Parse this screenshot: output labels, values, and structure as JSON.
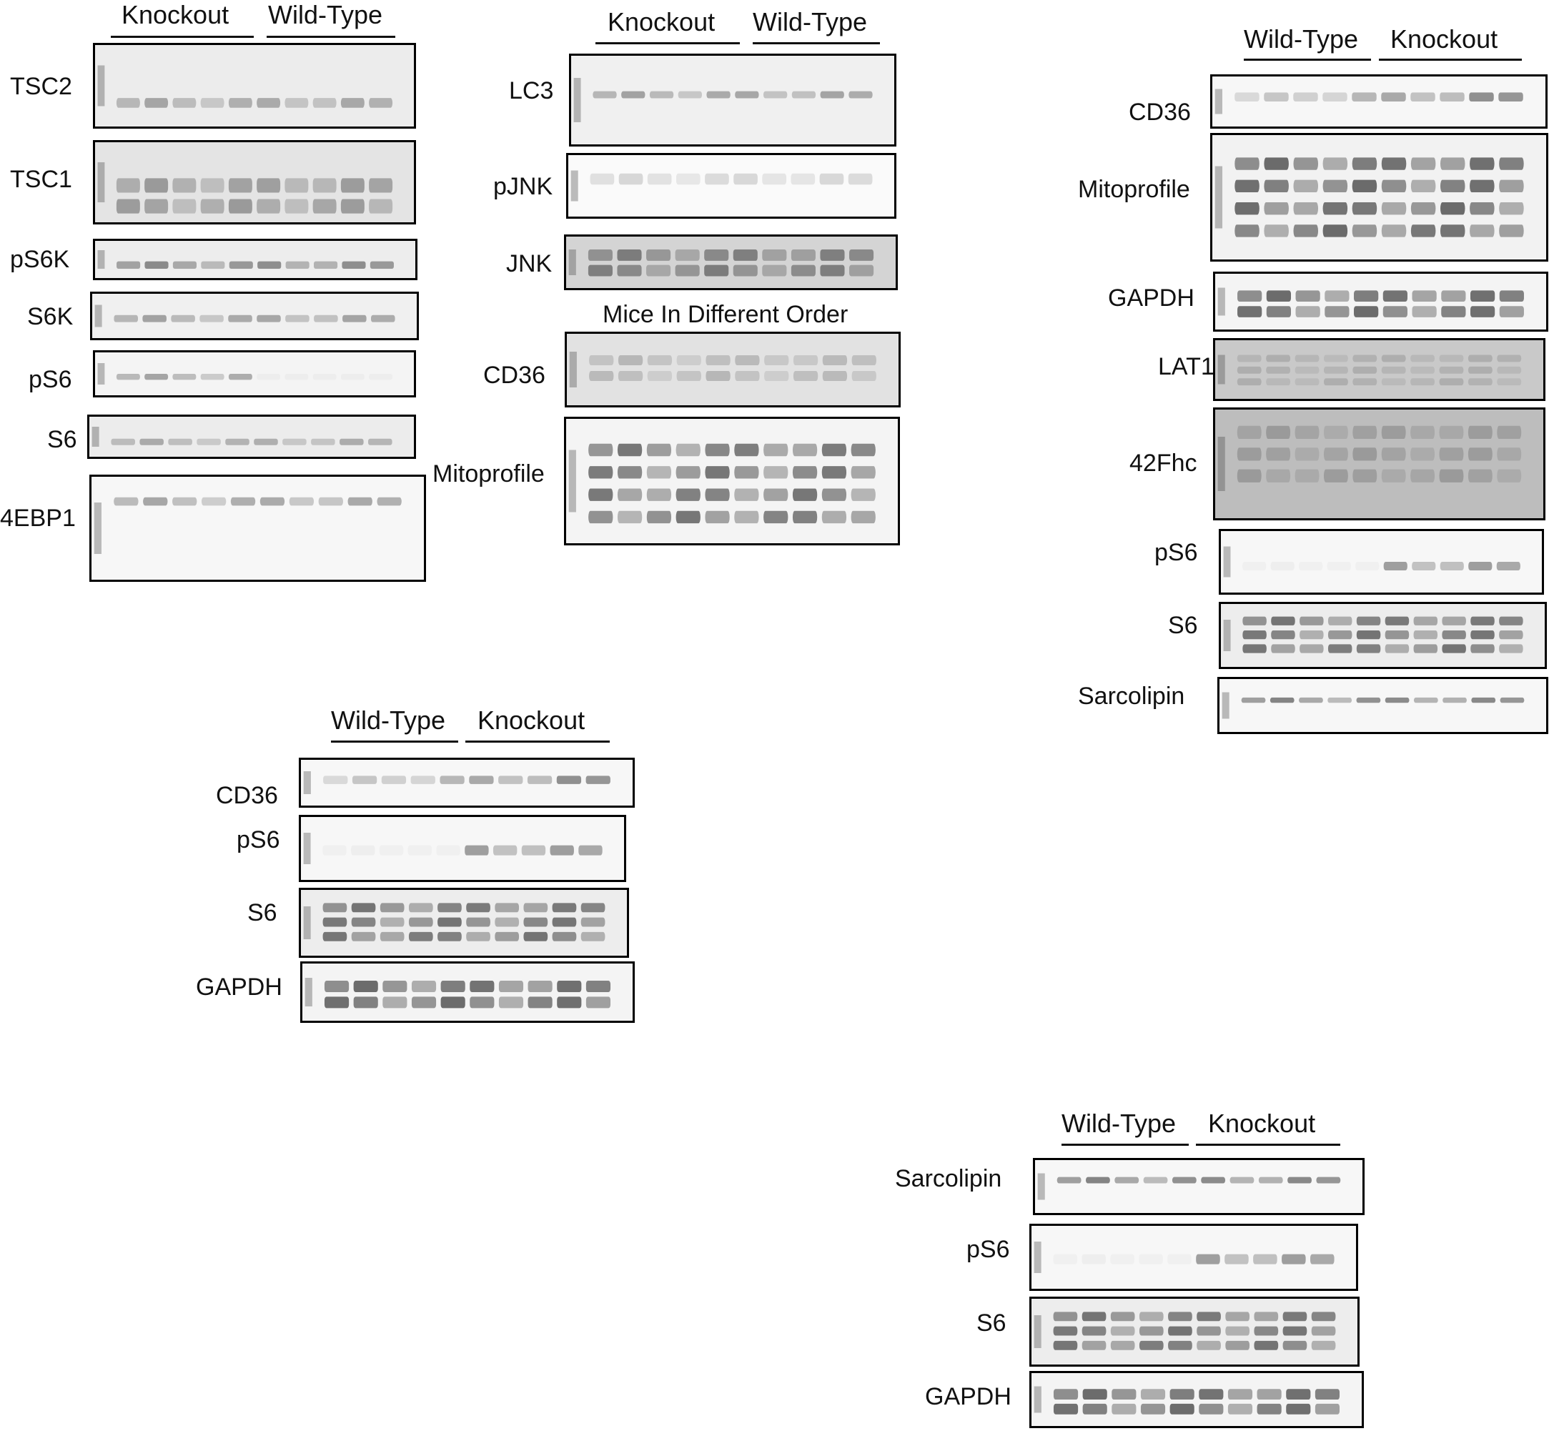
{
  "panels": {
    "a": {
      "groups": [
        "Knockout",
        "Wild-Type"
      ],
      "blots": [
        "TSC2",
        "TSC1",
        "pS6K",
        "S6K",
        "pS6",
        "S6",
        "4EBP1"
      ]
    },
    "b": {
      "groups": [
        "Knockout",
        "Wild-Type"
      ],
      "blots": [
        "LC3",
        "pJNK",
        "JNK",
        "CD36",
        "Mitoprofile"
      ],
      "note": "Mice In Different Order"
    },
    "c": {
      "groups": [
        "Wild-Type",
        "Knockout"
      ],
      "blots": [
        "CD36",
        "Mitoprofile",
        "GAPDH",
        "LAT1",
        "42Fhc",
        "pS6",
        "S6",
        "Sarcolipin"
      ]
    },
    "d": {
      "groups": [
        "Wild-Type",
        "Knockout"
      ],
      "blots": [
        "CD36",
        "pS6",
        "S6",
        "GAPDH"
      ]
    },
    "e": {
      "groups": [
        "Wild-Type",
        "Knockout"
      ],
      "blots": [
        "Sarcolipin",
        "pS6",
        "S6",
        "GAPDH"
      ]
    }
  }
}
